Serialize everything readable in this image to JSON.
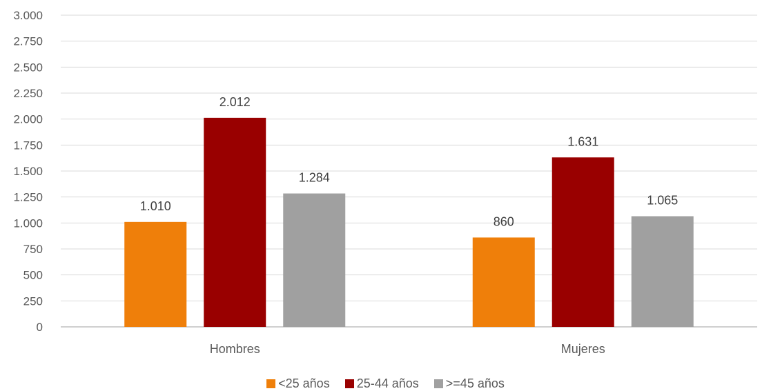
{
  "chart_data": {
    "type": "bar",
    "categories": [
      "Hombres",
      "Mujeres"
    ],
    "series": [
      {
        "name": "<25 años",
        "values": [
          1010,
          860
        ],
        "labels": [
          "1.010",
          "860"
        ],
        "color": "#ef7f0a"
      },
      {
        "name": "25-44 años",
        "values": [
          2012,
          1631
        ],
        "labels": [
          "2.012",
          "1.631"
        ],
        "color": "#990000"
      },
      {
        "name": ">=45 años",
        "values": [
          1284,
          1065
        ],
        "labels": [
          "1.284",
          "1.065"
        ],
        "color": "#a0a0a0"
      }
    ],
    "ylim": [
      0,
      3000
    ],
    "yticks": [
      0,
      250,
      500,
      750,
      1000,
      1250,
      1500,
      1750,
      2000,
      2250,
      2500,
      2750,
      3000
    ],
    "ytick_labels": [
      "0",
      "250",
      "500",
      "750",
      "1.000",
      "1.250",
      "1.500",
      "1.750",
      "2.000",
      "2.250",
      "2.500",
      "2.750",
      "3.000"
    ],
    "grid": true,
    "legend_position": "bottom"
  }
}
